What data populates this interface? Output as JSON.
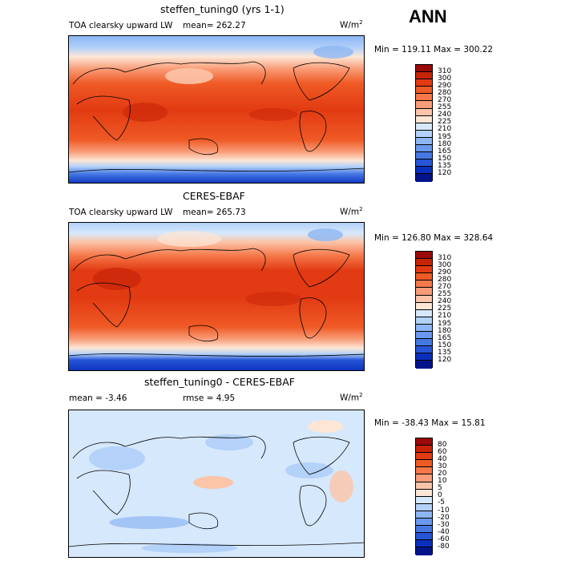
{
  "chart_data": [
    {
      "type": "heatmap",
      "title": "steffen_tuning0 (yrs 1-1)",
      "variable": "TOA clearsky upward LW",
      "mean_text": "mean= 262.27",
      "units": "W/m",
      "units_exp": "2",
      "minmax_text": "Min = 119.11 Max = 300.22",
      "min": 119.11,
      "max": 300.22,
      "colorbar_levels": [
        "310",
        "300",
        "290",
        "280",
        "270",
        "255",
        "240",
        "225",
        "210",
        "195",
        "180",
        "165",
        "150",
        "135",
        "120"
      ],
      "colors": [
        "#9a0a0a",
        "#c82408",
        "#e23a12",
        "#ef5a26",
        "#f5784a",
        "#f99d78",
        "#fcc4a8",
        "#fde6d6",
        "#d6e8fb",
        "#b3d1f9",
        "#8db6f4",
        "#6a98ee",
        "#4678e4",
        "#2656d6",
        "#0a2fbd",
        "#03148a"
      ]
    },
    {
      "type": "heatmap",
      "title": "CERES-EBAF",
      "variable": "TOA clearsky upward LW",
      "mean_text": "mean= 265.73",
      "units": "W/m",
      "units_exp": "2",
      "minmax_text": "Min = 126.80 Max = 328.64",
      "min": 126.8,
      "max": 328.64,
      "colorbar_levels": [
        "310",
        "300",
        "290",
        "280",
        "270",
        "255",
        "240",
        "225",
        "210",
        "195",
        "180",
        "165",
        "150",
        "135",
        "120"
      ],
      "colors": [
        "#9a0a0a",
        "#c82408",
        "#e23a12",
        "#ef5a26",
        "#f5784a",
        "#f99d78",
        "#fcc4a8",
        "#fde6d6",
        "#d6e8fb",
        "#b3d1f9",
        "#8db6f4",
        "#6a98ee",
        "#4678e4",
        "#2656d6",
        "#0a2fbd",
        "#03148a"
      ]
    },
    {
      "type": "heatmap",
      "title": "steffen_tuning0 - CERES-EBAF",
      "mean_text": "mean =   -3.46",
      "rmse_text": "rmse =    4.95",
      "units": "W/m",
      "units_exp": "2",
      "minmax_text": "Min = -38.43 Max =  15.81",
      "min": -38.43,
      "max": 15.81,
      "colorbar_levels": [
        "80",
        "60",
        "40",
        "30",
        "20",
        "10",
        "5",
        "0",
        "-5",
        "-10",
        "-20",
        "-30",
        "-40",
        "-60",
        "-80"
      ],
      "colors": [
        "#9a0a0a",
        "#c82408",
        "#e23a12",
        "#ef5a26",
        "#f5784a",
        "#f99d78",
        "#fcc4a8",
        "#fde6d6",
        "#d6e8fb",
        "#b3d1f9",
        "#8db6f4",
        "#6a98ee",
        "#4678e4",
        "#2656d6",
        "#0a2fbd",
        "#03148a"
      ]
    }
  ],
  "season": "ANN"
}
